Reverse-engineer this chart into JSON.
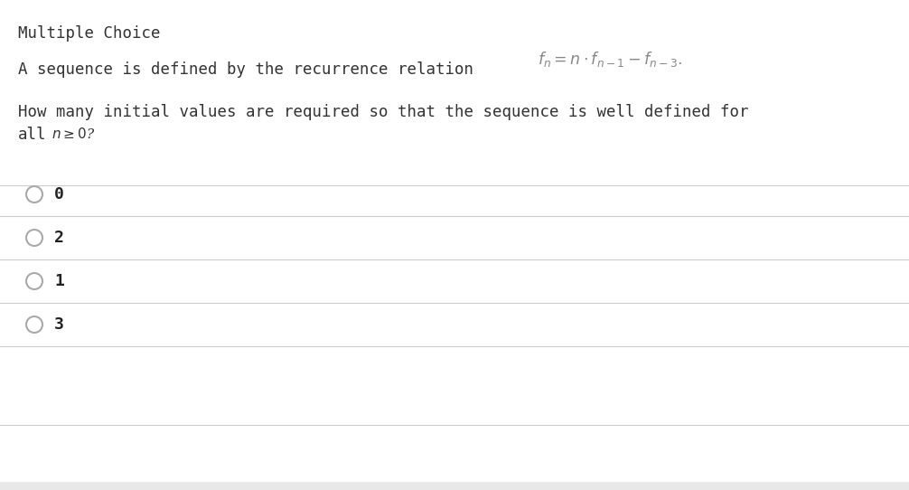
{
  "background_color": "#ffffff",
  "title_text": "Multiple Choice",
  "title_color": "#333333",
  "title_fontsize": 12.5,
  "title_font": "monospace",
  "question_line1_prefix": "A sequence is defined by the recurrence relation",
  "question_text_color": "#333333",
  "formula_color": "#888888",
  "question_line2": "How many initial values are required so that the sequence is well defined for",
  "question_line3_prefix": "all",
  "question_line3_math": "n≥0?",
  "options": [
    "0",
    "2",
    "1",
    "3"
  ],
  "option_color": "#222222",
  "option_fontsize": 13,
  "circle_color": "#aaaaaa",
  "line_color": "#cccccc",
  "fig_width": 10.06,
  "fig_height": 5.42,
  "dpi": 100
}
